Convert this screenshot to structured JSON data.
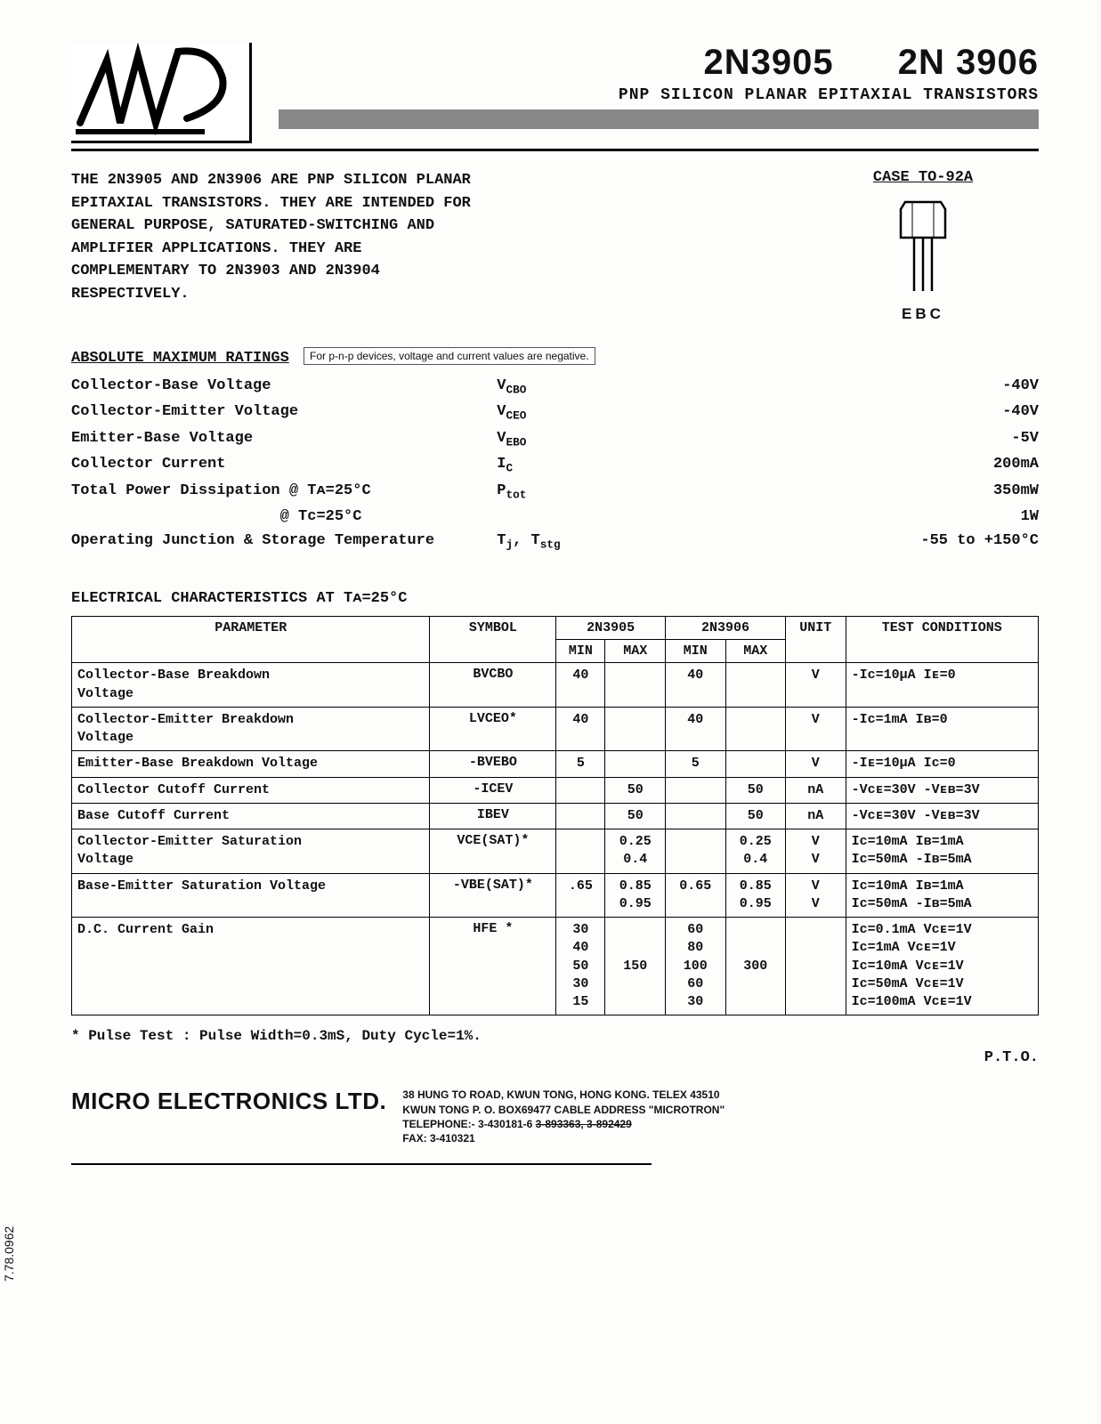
{
  "header": {
    "part1": "2N3905",
    "part2": "2N 3906",
    "subtitle": "PNP SILICON PLANAR EPITAXIAL TRANSISTORS"
  },
  "intro": "THE 2N3905 AND 2N3906 ARE PNP SILICON PLANAR EPITAXIAL TRANSISTORS. THEY ARE INTENDED FOR GENERAL PURPOSE, SATURATED-SWITCHING AND AMPLIFIER APPLICATIONS. THEY ARE COMPLEMENTARY TO 2N3903 AND 2N3904 RESPECTIVELY.",
  "case": {
    "title": "CASE TO-92A",
    "pins": "EBC"
  },
  "ratings": {
    "title": "ABSOLUTE MAXIMUM RATINGS",
    "note": "For p-n-p devices, voltage and current values are negative.",
    "rows": [
      {
        "param": "Collector-Base Voltage",
        "sym": "V",
        "sub": "CBO",
        "val": "-40V"
      },
      {
        "param": "Collector-Emitter Voltage",
        "sym": "V",
        "sub": "CEO",
        "val": "-40V"
      },
      {
        "param": "Emitter-Base Voltage",
        "sym": "V",
        "sub": "EBO",
        "val": "-5V"
      },
      {
        "param": "Collector Current",
        "sym": "I",
        "sub": "C",
        "val": "200mA"
      },
      {
        "param": "Total Power Dissipation @ Tᴀ=25°C",
        "sym": "P",
        "sub": "tot",
        "val": "350mW"
      },
      {
        "param": "                       @ Tᴄ=25°C",
        "sym": "",
        "sub": "",
        "val": "1W"
      },
      {
        "param": "Operating Junction & Storage Temperature",
        "sym": "T",
        "sub": "j",
        "sym2": ", T",
        "sub2": "stg",
        "val": "-55 to +150°C"
      }
    ]
  },
  "ec": {
    "title": "ELECTRICAL CHARACTERISTICS AT Tᴀ=25°C",
    "headers": {
      "param": "PARAMETER",
      "symbol": "SYMBOL",
      "p1": "2N3905",
      "p2": "2N3906",
      "min": "MIN",
      "max": "MAX",
      "unit": "UNIT",
      "cond": "TEST CONDITIONS"
    },
    "rows": [
      {
        "param": "Collector-Base Breakdown\n Voltage",
        "sym": "BVCBO",
        "min1": "40",
        "max1": "",
        "min2": "40",
        "max2": "",
        "unit": "V",
        "cond": "-Iᴄ=10µA  Iᴇ=0"
      },
      {
        "param": "Collector-Emitter Breakdown\n Voltage",
        "sym": "LVCEO*",
        "min1": "40",
        "max1": "",
        "min2": "40",
        "max2": "",
        "unit": "V",
        "cond": "-Iᴄ=1mA   Iʙ=0"
      },
      {
        "param": "Emitter-Base Breakdown Voltage",
        "sym": "-BVEBO",
        "min1": "5",
        "max1": "",
        "min2": "5",
        "max2": "",
        "unit": "V",
        "cond": "-Iᴇ=10µA  Iᴄ=0"
      },
      {
        "param": "Collector Cutoff Current",
        "sym": "-ICEV",
        "min1": "",
        "max1": "50",
        "min2": "",
        "max2": "50",
        "unit": "nA",
        "cond": "-Vᴄᴇ=30V -Vᴇʙ=3V"
      },
      {
        "param": "Base Cutoff Current",
        "sym": "IBEV",
        "min1": "",
        "max1": "50",
        "min2": "",
        "max2": "50",
        "unit": "nA",
        "cond": "-Vᴄᴇ=30V -Vᴇʙ=3V"
      },
      {
        "param": "Collector-Emitter Saturation\n Voltage",
        "sym": "VCE(SAT)*",
        "min1": "",
        "max1": "0.25\n0.4",
        "min2": "",
        "max2": "0.25\n0.4",
        "unit": "V\nV",
        "cond": "Iᴄ=10mA  Iʙ=1mA\nIᴄ=50mA -Iʙ=5mA"
      },
      {
        "param": "Base-Emitter Saturation Voltage",
        "sym": "-VBE(SAT)*",
        "min1": ".65",
        "max1": "0.85\n0.95",
        "min2": "0.65",
        "max2": "0.85\n0.95",
        "unit": "V\nV",
        "cond": "Iᴄ=10mA  Iʙ=1mA\nIᴄ=50mA -Iʙ=5mA"
      },
      {
        "param": "D.C. Current Gain",
        "sym": "HFE  *",
        "min1": "30\n40\n50\n30\n15",
        "max1": "\n\n150",
        "min2": "60\n80\n100\n60\n30",
        "max2": "\n\n300",
        "unit": "",
        "cond": "Iᴄ=0.1mA Vᴄᴇ=1V\nIᴄ=1mA   Vᴄᴇ=1V\nIᴄ=10mA  Vᴄᴇ=1V\nIᴄ=50mA  Vᴄᴇ=1V\nIᴄ=100mA Vᴄᴇ=1V"
      }
    ]
  },
  "footnote": "*  Pulse Test : Pulse Width=0.3mS, Duty Cycle=1%.",
  "pto": "P.T.O.",
  "footer": {
    "company": "MICRO ELECTRONICS LTD.",
    "addr1": "38 HUNG TO ROAD, KWUN TONG, HONG KONG.    TELEX 43510",
    "addr2": "KWUN TONG P. O. BOX69477 CABLE ADDRESS \"MICROTRON\"",
    "addr3a": "TELEPHONE:-  3-430181-6   ",
    "addr3b": "3-893363,   3-892429",
    "addr4": "FAX: 3-410321"
  },
  "side_code": "7.78.0962"
}
